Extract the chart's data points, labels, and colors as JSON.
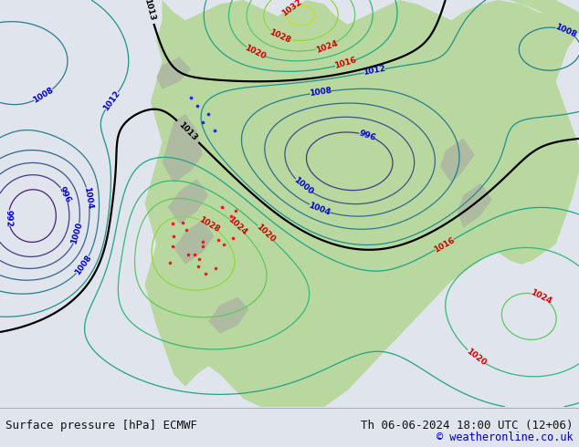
{
  "title_left": "Surface pressure [hPa] ECMWF",
  "title_right": "Th 06-06-2024 18:00 UTC (12+06)",
  "copyright": "© weatheronline.co.uk",
  "ocean_bg": "#e8e8e8",
  "land_green": "#b8d8a0",
  "land_gray": "#a8a8a0",
  "footer_bg": "#e0e4ec",
  "text_color_dark": "#111111",
  "col_black": "#000000",
  "col_blue": "#0000cc",
  "col_red": "#cc0000",
  "figsize": [
    6.34,
    4.9
  ],
  "dpi": 100
}
